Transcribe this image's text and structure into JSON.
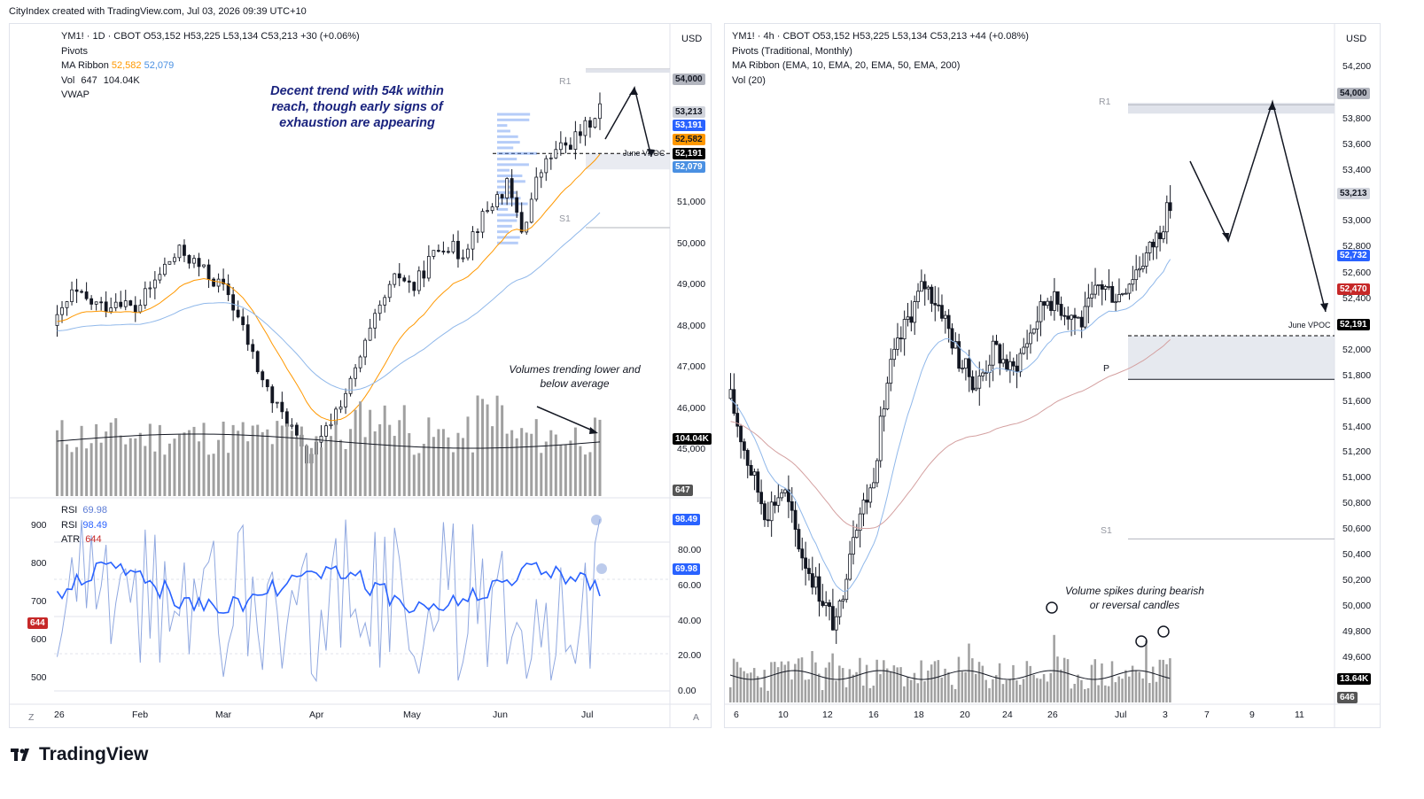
{
  "header": {
    "credit": "CityIndex created with TradingView.com, Jul 03, 2026 09:39 UTC+10"
  },
  "left_chart": {
    "legend": {
      "symbol_line": "YM1! · 1D · CBOT  O53,152  H53,225  L53,134  C53,213  +30 (+0.06%)",
      "pivots": "Pivots",
      "ma_ribbon_label": "MA Ribbon",
      "ma_ribbon_v1": "52,582",
      "ma_ribbon_v2": "52,079",
      "vol_label": "Vol",
      "vol_v1": "647",
      "vol_v2": "104.04K",
      "vwap": "VWAP",
      "rsi1_label": "RSI",
      "rsi1_value": "69.98",
      "rsi2_label": "RSI",
      "rsi2_value": "98.49",
      "atr_label": "ATR",
      "atr_value": "644"
    },
    "currency": "USD",
    "annotation_main": "Decent trend with 54k within reach, though early signs of exhaustion are appearing",
    "annotation_volume": "Volumes trending lower and below average",
    "pivot_labels": {
      "r1": "R1",
      "s1": "S1",
      "june_vpoc": "June VPOC"
    },
    "price_axis": [
      "51,000",
      "50,000",
      "49,000",
      "48,000",
      "47,000",
      "46,000",
      "45,000"
    ],
    "price_tags": [
      {
        "text": "54,000",
        "bg": "#b2b5be",
        "fg": "#131722"
      },
      {
        "text": "53,213",
        "bg": "#d1d4dc",
        "fg": "#131722"
      },
      {
        "text": "53,191",
        "bg": "#2962ff",
        "fg": "#ffffff"
      },
      {
        "text": "52,582",
        "bg": "#ff9800",
        "fg": "#131722"
      },
      {
        "text": "52,191",
        "bg": "#000000",
        "fg": "#ffffff"
      },
      {
        "text": "52,079",
        "bg": "#4a90e2",
        "fg": "#ffffff"
      },
      {
        "text": "104.04K",
        "bg": "#000000",
        "fg": "#ffffff"
      },
      {
        "text": "647",
        "bg": "#555555",
        "fg": "#ffffff"
      }
    ],
    "atr_axis": [
      "900",
      "800",
      "700",
      "600",
      "500"
    ],
    "atr_tag": "644",
    "rsi_axis": [
      "80.00",
      "60.00",
      "40.00",
      "20.00",
      "0.00"
    ],
    "rsi_tags": [
      "98.49",
      "69.98"
    ],
    "time_axis": [
      "26",
      "Feb",
      "Mar",
      "Apr",
      "May",
      "Jun",
      "Jul"
    ],
    "corner_left": "Z",
    "corner_right": "A"
  },
  "right_chart": {
    "legend": {
      "symbol_line": "YM1! · 4h · CBOT  O53,152  H53,225  L53,134  C53,213  +44 (+0.08%)",
      "pivots": "Pivots (Traditional, Monthly)",
      "ma_ribbon": "MA Ribbon (EMA, 10, EMA, 20, EMA, 50, EMA, 200)",
      "vol": "Vol (20)"
    },
    "currency": "USD",
    "annotation_volume": "Volume spikes during bearish or reversal candles",
    "pivot_labels": {
      "r1": "R1",
      "p": "P",
      "s1": "S1",
      "june_vpoc": "June VPOC"
    },
    "price_axis": [
      "54,200",
      "53,800",
      "53,600",
      "53,400",
      "53,000",
      "52,800",
      "52,600",
      "52,400",
      "52,000",
      "51,800",
      "51,600",
      "51,400",
      "51,200",
      "51,000",
      "50,800",
      "50,600",
      "50,400",
      "50,200",
      "50,000",
      "49,800",
      "49,600"
    ],
    "price_tags": [
      {
        "text": "54,000",
        "bg": "#b2b5be",
        "fg": "#131722"
      },
      {
        "text": "53,213",
        "bg": "#d1d4dc",
        "fg": "#131722"
      },
      {
        "text": "52,732",
        "bg": "#2962ff",
        "fg": "#ffffff"
      },
      {
        "text": "52,470",
        "bg": "#c62828",
        "fg": "#ffffff"
      },
      {
        "text": "52,191",
        "bg": "#000000",
        "fg": "#ffffff"
      },
      {
        "text": "13.64K",
        "bg": "#000000",
        "fg": "#ffffff"
      },
      {
        "text": "646",
        "bg": "#555555",
        "fg": "#ffffff"
      }
    ],
    "time_axis": [
      "6",
      "10",
      "12",
      "16",
      "18",
      "20",
      "24",
      "26",
      "Jul",
      "3",
      "7",
      "9",
      "11"
    ]
  },
  "footer": {
    "logo_text": "TradingView"
  },
  "chart_data": [
    {
      "type": "candlestick",
      "title": "YM1! · 1D · CBOT",
      "xlabel": "",
      "ylabel": "",
      "x_range": [
        "Jan 26",
        "Jul 03"
      ],
      "ylim": [
        45000,
        54400
      ],
      "close_series_approx": [
        48600,
        49200,
        49000,
        48900,
        49100,
        48800,
        49300,
        49800,
        50100,
        49800,
        49500,
        49200,
        48400,
        47500,
        46800,
        46400,
        45600,
        46000,
        46700,
        47300,
        48200,
        49000,
        49600,
        49300,
        49900,
        50300,
        50000,
        50600,
        51100,
        51500,
        50500,
        51700,
        52200,
        52400,
        52700,
        53213
      ],
      "ohlc_last": {
        "open": 53152,
        "high": 53225,
        "low": 53134,
        "close": 53213
      },
      "ma_ribbon": [
        52582,
        52079
      ],
      "pivots": {
        "R1": 54000,
        "S1": 50600
      },
      "june_vpoc": 52191,
      "volume_last": 647,
      "volume_ma": 104040,
      "rsi": [
        69.98,
        98.49
      ],
      "atr": 644
    },
    {
      "type": "candlestick",
      "title": "YM1! · 4h · CBOT",
      "xlabel": "",
      "ylabel": "",
      "ylim": [
        49500,
        54300
      ],
      "close_series_approx": [
        51700,
        51200,
        50800,
        51000,
        50500,
        50200,
        49900,
        50700,
        51000,
        51900,
        52300,
        52600,
        52400,
        52000,
        51800,
        52100,
        51900,
        52200,
        52500,
        52400,
        52300,
        52600,
        52500,
        52700,
        52900,
        53213
      ],
      "ohlc_last": {
        "open": 53152,
        "high": 53225,
        "low": 53134,
        "close": 53213
      },
      "ema_values": [
        52732,
        52470
      ],
      "pivots": {
        "R1": 54000,
        "P": 51850,
        "S1": 50600
      },
      "june_vpoc": 52191,
      "volume_last": 646,
      "volume_ma": 13640
    }
  ]
}
